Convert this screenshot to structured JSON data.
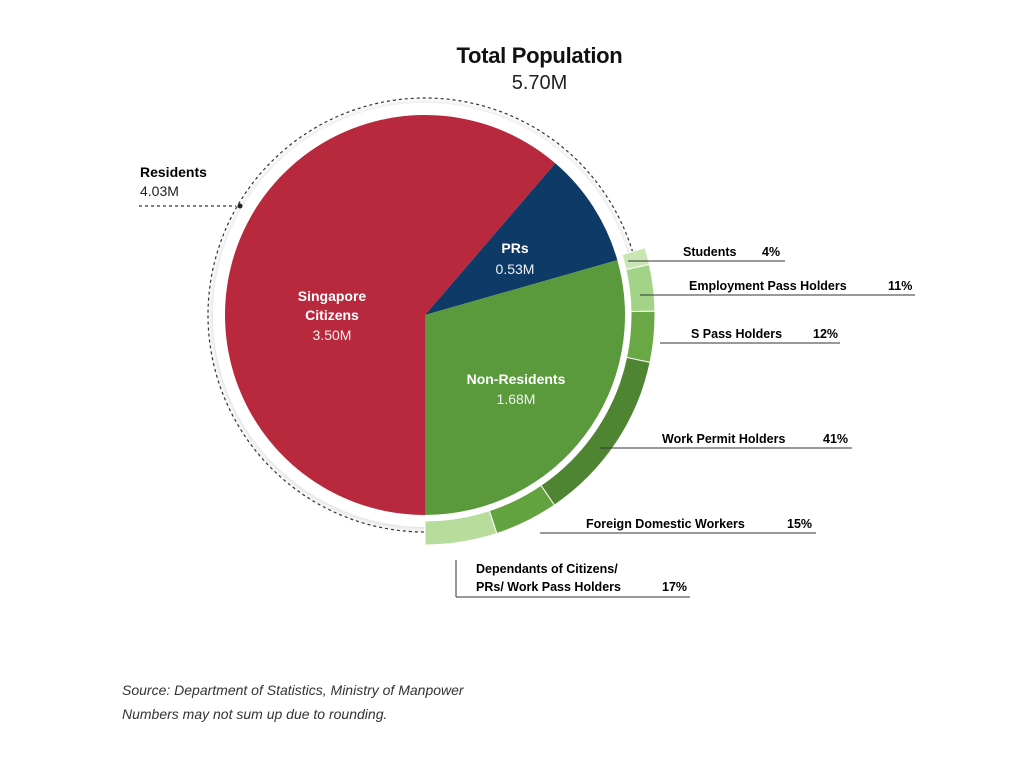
{
  "title": "Total Population",
  "subtitle": "5.70M",
  "residents": {
    "label": "Residents",
    "value_text": "4.03M"
  },
  "source_lines": [
    "Source: Department of Statistics, Ministry of Manpower",
    "Numbers may not sum up due to rounding."
  ],
  "colors": {
    "citizens": "#b8293d",
    "prs": "#0d3a66",
    "nonres": "#5a9a3c",
    "ring_light": "#b7dc9b",
    "ring_mid": "#6aa845",
    "ring_dark": "#4f8433"
  },
  "chart_data": {
    "type": "pie",
    "title": "Total Population",
    "subtitle": "5.70M",
    "total": 5.7,
    "unit": "M",
    "slices": [
      {
        "label": "Singapore Citizens",
        "value": 3.5,
        "value_text": "3.50M",
        "color": "#b8293d"
      },
      {
        "label": "PRs",
        "value": 0.53,
        "value_text": "0.53M",
        "color": "#0d3a66"
      },
      {
        "label": "Non-Residents",
        "value": 1.68,
        "value_text": "1.68M",
        "color": "#5a9a3c"
      }
    ],
    "breakdown": {
      "parent": "Non-Residents",
      "unit": "%",
      "items": [
        {
          "label": "Students",
          "value": 4,
          "value_text": "4%",
          "color": "#c9e6b3"
        },
        {
          "label": "Employment Pass Holders",
          "value": 11,
          "value_text": "11%",
          "color": "#a3d387"
        },
        {
          "label": "S Pass Holders",
          "value": 12,
          "value_text": "12%",
          "color": "#6aa845"
        },
        {
          "label": "Work Permit Holders",
          "value": 41,
          "value_text": "41%",
          "color": "#4f8433"
        },
        {
          "label": "Foreign Domestic Workers",
          "value": 15,
          "value_text": "15%",
          "color": "#62a33f"
        },
        {
          "label": "Dependants of Citizens/\nPRs/ Work Pass Holders",
          "value": 17,
          "value_text": "17%",
          "color": "#b7dc9b"
        }
      ]
    }
  }
}
